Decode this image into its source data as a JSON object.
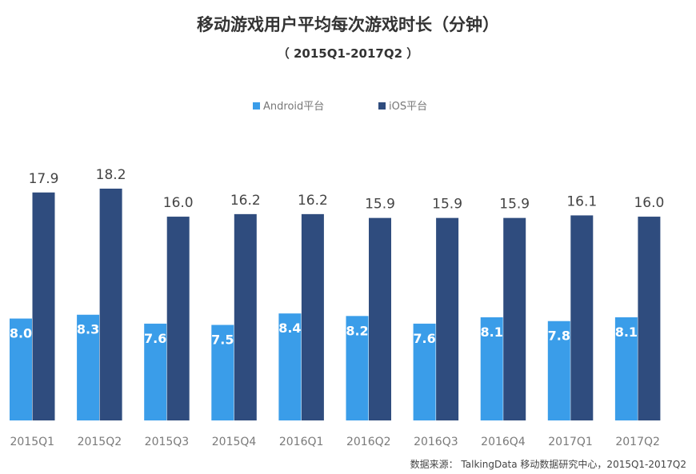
{
  "chart_data": {
    "type": "bar",
    "title": "移动游戏用户平均每次游戏时长（分钟）",
    "subtitle": "（ 2015Q1-2017Q2 ）",
    "categories": [
      "2015Q1",
      "2015Q2",
      "2015Q3",
      "2015Q4",
      "2016Q1",
      "2016Q2",
      "2016Q3",
      "2016Q4",
      "2017Q1",
      "2017Q2"
    ],
    "series": [
      {
        "name": "Android平台",
        "color": "#3a9de9",
        "values": [
          8.0,
          8.3,
          7.6,
          7.5,
          8.4,
          8.2,
          7.6,
          8.1,
          7.8,
          8.1
        ],
        "labels": [
          "8.0",
          "8.3",
          "7.6",
          "7.5",
          "8.4",
          "8.2",
          "7.6",
          "8.1",
          "7.8",
          "8.1"
        ]
      },
      {
        "name": "iOS平台",
        "color": "#2f4c7e",
        "values": [
          17.9,
          18.2,
          16.0,
          16.2,
          16.2,
          15.9,
          15.9,
          15.9,
          16.1,
          16.0
        ],
        "labels": [
          "17.9",
          "18.2",
          "16.0",
          "16.2",
          "16.2",
          "15.9",
          "15.9",
          "15.9",
          "16.1",
          "16.0"
        ]
      }
    ],
    "xlabel": "",
    "ylabel": "",
    "ylim": [
      0,
      18.2
    ],
    "grid": false,
    "legend_position": "top-center",
    "source": "数据来源： TalkingData 移动数据研究中心，2015Q1-2017Q2"
  }
}
